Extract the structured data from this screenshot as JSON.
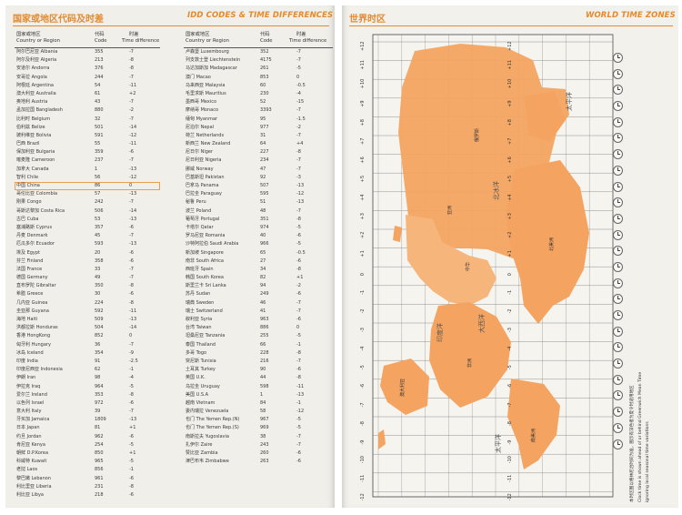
{
  "left": {
    "title_cn": "国家或地区代码及时差",
    "title_en": "IDD CODES & TIME DIFFERENCES",
    "headers": {
      "country_cn": "国家或地区",
      "country_en": "Country or Region",
      "code_cn": "代码",
      "code_en": "Code",
      "diff_cn": "时差",
      "diff_en": "Time difference"
    },
    "rows_a": [
      [
        "阿尔巴尼亚 Albania",
        "355",
        "-7"
      ],
      [
        "阿尔及利亚 Algeria",
        "213",
        "-8"
      ],
      [
        "安道尔 Andorra",
        "376",
        "-8"
      ],
      [
        "安哥拉 Angola",
        "244",
        "-7"
      ],
      [
        "阿根廷 Argentina",
        "54",
        "-11"
      ],
      [
        "澳大利亚 Australia",
        "61",
        "+2"
      ],
      [
        "奥地利 Austria",
        "43",
        "-7"
      ],
      [
        "孟加拉国 Bangladesh",
        "880",
        "-2"
      ],
      [
        "比利时 Belgium",
        "32",
        "-7"
      ],
      [
        "伯利兹 Belize",
        "501",
        "-14"
      ],
      [
        "玻利维亚 Bolivia",
        "591",
        "-12"
      ],
      [
        "巴西 Brazil",
        "55",
        "-11"
      ],
      [
        "保加利亚 Bulgaria",
        "359",
        "-6"
      ],
      [
        "喀麦隆 Cameroon",
        "237",
        "-7"
      ],
      [
        "加拿大 Canada",
        "1",
        "-13"
      ],
      [
        "智利 Chile",
        "56",
        "-12"
      ],
      [
        "中国 China",
        "86",
        "0"
      ],
      [
        "哥伦比亚 Colombia",
        "57",
        "-13"
      ],
      [
        "刚果 Congo",
        "242",
        "-7"
      ],
      [
        "哥斯达黎加 Costa Rica",
        "506",
        "-14"
      ],
      [
        "古巴 Cuba",
        "53",
        "-13"
      ],
      [
        "塞浦路斯 Cyprus",
        "357",
        "-6"
      ],
      [
        "丹麦 Denmark",
        "45",
        "-7"
      ],
      [
        "厄瓜多尔 Ecuador",
        "593",
        "-13"
      ],
      [
        "埃及 Egypt",
        "20",
        "-6"
      ],
      [
        "芬兰 Finland",
        "358",
        "-6"
      ],
      [
        "法国 France",
        "33",
        "-7"
      ],
      [
        "德国 Germany",
        "49",
        "-7"
      ],
      [
        "直布罗陀 Gibraltar",
        "350",
        "-8"
      ],
      [
        "希腊 Greece",
        "30",
        "-6"
      ],
      [
        "几内亚 Guinea",
        "224",
        "-8"
      ],
      [
        "圭亚那 Guyana",
        "592",
        "-11"
      ],
      [
        "海地 Haiti",
        "509",
        "-13"
      ],
      [
        "洪都拉斯 Honduras",
        "504",
        "-14"
      ],
      [
        "香港 HongKong",
        "852",
        "0"
      ],
      [
        "匈牙利 Hungary",
        "36",
        "-7"
      ],
      [
        "冰岛 Iceland",
        "354",
        "-9"
      ],
      [
        "印度 India",
        "91",
        "-2.5"
      ],
      [
        "印度尼西亚 Indonesia",
        "62",
        "-1"
      ],
      [
        "伊朗 Iran",
        "98",
        "-4"
      ],
      [
        "伊拉克 Iraq",
        "964",
        "-5"
      ],
      [
        "爱尔兰 Ireland",
        "353",
        "-8"
      ],
      [
        "以色列 Israel",
        "972",
        "-6"
      ],
      [
        "意大利 Italy",
        "39",
        "-7"
      ],
      [
        "牙买加 Jamaica",
        "1809",
        "-13"
      ],
      [
        "日本 Japan",
        "81",
        "+1"
      ],
      [
        "约旦 Jordan",
        "962",
        "-6"
      ],
      [
        "肯尼亚 Kenya",
        "254",
        "-5"
      ],
      [
        "朝鲜 D.P.Korea",
        "850",
        "+1"
      ],
      [
        "科威特 Kuwait",
        "965",
        "-5"
      ],
      [
        "老挝 Laos",
        "856",
        "-1"
      ],
      [
        "黎巴嫩 Lebanon",
        "961",
        "-6"
      ],
      [
        "利比里亚 Liberia",
        "231",
        "-8"
      ],
      [
        "利比亚 Libya",
        "218",
        "-6"
      ]
    ],
    "rows_b": [
      [
        "卢森堡 Luxembourg",
        "352",
        "-7"
      ],
      [
        "列支敦士登 Liechtenstein",
        "4175",
        "-7"
      ],
      [
        "马达加斯加 Madagascar",
        "261",
        "-5"
      ],
      [
        "澳门 Macao",
        "853",
        "0"
      ],
      [
        "马来西亚 Malaysia",
        "60",
        "-0.5"
      ],
      [
        "毛里求斯 Mauritius",
        "230",
        "-4"
      ],
      [
        "墨西哥 Mexico",
        "52",
        "-15"
      ],
      [
        "摩纳哥 Monaco",
        "3393",
        "-7"
      ],
      [
        "缅甸 Myanmar",
        "95",
        "-1.5"
      ],
      [
        "尼泊尔 Nepal",
        "977",
        "-2"
      ],
      [
        "荷兰 Netherlands",
        "31",
        "-7"
      ],
      [
        "新西兰 New Zealand",
        "64",
        "+4"
      ],
      [
        "尼日尔 Niger",
        "227",
        "-8"
      ],
      [
        "尼日利亚 Nigeria",
        "234",
        "-7"
      ],
      [
        "挪威 Norway",
        "47",
        "-7"
      ],
      [
        "巴基斯坦 Pakistan",
        "92",
        "-3"
      ],
      [
        "巴拿马 Panama",
        "507",
        "-13"
      ],
      [
        "巴拉圭 Paraguay",
        "595",
        "-12"
      ],
      [
        "秘鲁 Peru",
        "51",
        "-13"
      ],
      [
        "波兰 Poland",
        "48",
        "-7"
      ],
      [
        "葡萄牙 Portugal",
        "351",
        "-8"
      ],
      [
        "卡塔尔 Qatar",
        "974",
        "-5"
      ],
      [
        "罗马尼亚 Romania",
        "40",
        "-6"
      ],
      [
        "沙特阿拉伯 Saudi Arabia",
        "966",
        "-5"
      ],
      [
        "新加坡 Singapore",
        "65",
        "-0.5"
      ],
      [
        "南非 South Africa",
        "27",
        "-6"
      ],
      [
        "西班牙 Spain",
        "34",
        "-8"
      ],
      [
        "韩国 South Korea",
        "82",
        "+1"
      ],
      [
        "斯里兰卡 Sri Lanka",
        "94",
        "-2"
      ],
      [
        "苏丹 Sudan",
        "249",
        "-6"
      ],
      [
        "瑞典 Sweden",
        "46",
        "-7"
      ],
      [
        "瑞士 Switzerland",
        "41",
        "-7"
      ],
      [
        "叙利亚 Syria",
        "963",
        "-6"
      ],
      [
        "台湾 Taiwan",
        "886",
        "0"
      ],
      [
        "坦桑尼亚 Tanzania",
        "255",
        "-5"
      ],
      [
        "泰国 Thailand",
        "66",
        "-1"
      ],
      [
        "多哥 Togo",
        "228",
        "-8"
      ],
      [
        "突尼斯 Tunisia",
        "216",
        "-7"
      ],
      [
        "土耳其 Turkey",
        "90",
        "-6"
      ],
      [
        "英国 U.K.",
        "44",
        "-8"
      ],
      [
        "乌拉圭 Uruguay",
        "598",
        "-11"
      ],
      [
        "美国 U.S.A",
        "1",
        "-13"
      ],
      [
        "越南 Vietnam",
        "84",
        "-1"
      ],
      [
        "委内瑞拉 Venezuela",
        "58",
        "-12"
      ],
      [
        "也门 The Yemen Rep.(N)",
        "967",
        "-5"
      ],
      [
        "也门 The Yemen Rep.(S)",
        "969",
        "-5"
      ],
      [
        "南斯拉夫 Yugoslavia",
        "38",
        "-7"
      ],
      [
        "扎伊尔 Zaire",
        "243",
        "-7"
      ],
      [
        "赞比亚 Zambia",
        "260",
        "-6"
      ],
      [
        "津巴布韦 Zimbabwe",
        "263",
        "-6"
      ]
    ]
  },
  "right": {
    "title_cn": "世界时区",
    "title_en": "WORLD TIME ZONES",
    "zone_labels": [
      "+12",
      "+11",
      "+10",
      "+9",
      "+8",
      "+7",
      "+6",
      "+5",
      "+4",
      "+3",
      "+2",
      "+1",
      "0",
      "-1",
      "-2",
      "-3",
      "-4",
      "-5",
      "-6",
      "-7",
      "-8",
      "-9",
      "-10",
      "-11",
      "-12"
    ],
    "ocean_labels": {
      "pacific_n": "太平洋",
      "pacific_s": "太平洋",
      "atlantic": "大西洋",
      "indian": "印度洋",
      "arctic": "北冰洋"
    },
    "land_labels": {
      "china": "中华",
      "north_america": "北美洲",
      "south_america": "南美洲",
      "africa": "非洲",
      "australia": "澳大利亚",
      "russia": "俄罗斯",
      "asia": "亚洲"
    },
    "note_cn": "本时区图以格林尼治时间为准，图示有深色者为夏令时适用地区",
    "note_en1": "Clock time is shown ahead of or behind Greenwich Mean Time",
    "note_en2": "ignoring local seasonal time variations",
    "colors": {
      "land": "#f4a460",
      "land_light": "#f8c08a",
      "accent": "#e48a2e"
    }
  }
}
